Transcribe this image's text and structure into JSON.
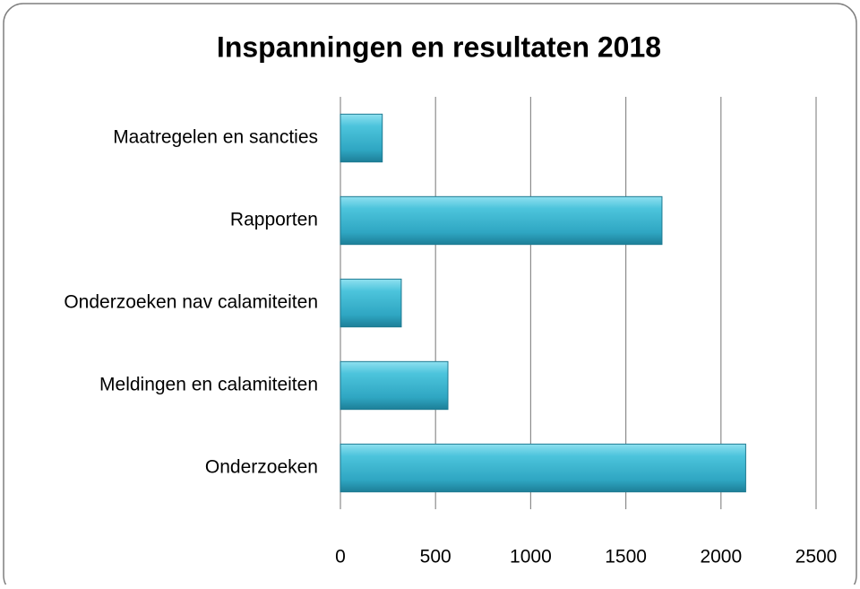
{
  "chart_data": {
    "type": "bar",
    "orientation": "horizontal",
    "title": "Inspanningen en resultaten 2018",
    "categories": [
      "Maatregelen en sancties",
      "Rapporten",
      "Onderzoeken nav calamiteiten",
      "Meldingen en calamiteiten",
      "Onderzoeken"
    ],
    "values": [
      220,
      1690,
      320,
      565,
      2130
    ],
    "color": "#3db6d0",
    "xlim": [
      0,
      2500
    ],
    "xticks": [
      0,
      500,
      1000,
      1500,
      2000,
      2500
    ],
    "grid": true
  }
}
